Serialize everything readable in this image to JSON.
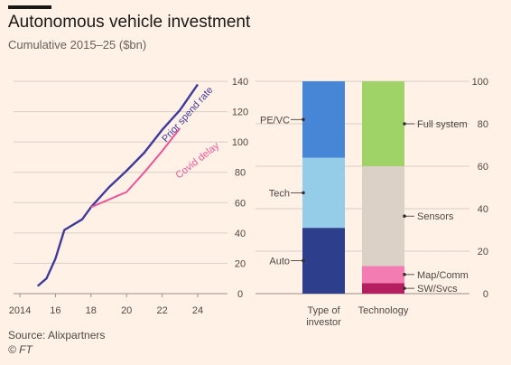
{
  "header": {
    "title": "Autonomous vehicle investment",
    "subtitle": "Cumulative 2015–25 ($bn)"
  },
  "footer": {
    "source": "Source: Alixpartners",
    "credit": "© FT"
  },
  "colors": {
    "background": "#fff1e5",
    "prior": "#3f3a9b",
    "covid": "#e7559c",
    "grid": "#d8cfc7"
  },
  "chart_data": [
    {
      "type": "line",
      "x_ticks": [
        "2014",
        "16",
        "18",
        "20",
        "22",
        "24"
      ],
      "x_tick_values": [
        2014,
        2016,
        2018,
        2020,
        2022,
        2024
      ],
      "xlim": [
        2014,
        2025
      ],
      "y_ticks": [
        "0",
        "20",
        "40",
        "60",
        "80",
        "100",
        "120",
        "140"
      ],
      "ylim": [
        0,
        140
      ],
      "grid": true,
      "series": [
        {
          "name": "Prior spend rate",
          "color": "#3f3a9b",
          "points": [
            [
              2015,
              5
            ],
            [
              2015.5,
              10
            ],
            [
              2016,
              23
            ],
            [
              2016.5,
              42
            ],
            [
              2017.5,
              49
            ],
            [
              2018,
              57
            ],
            [
              2019,
              70
            ],
            [
              2020,
              81
            ],
            [
              2021,
              93
            ],
            [
              2022,
              108
            ],
            [
              2023,
              121
            ],
            [
              2024,
              138
            ]
          ]
        },
        {
          "name": "Covid delay",
          "color": "#e7559c",
          "points": [
            [
              2018,
              57
            ],
            [
              2019,
              62
            ],
            [
              2020,
              67
            ],
            [
              2021,
              80
            ],
            [
              2022,
              94
            ],
            [
              2023,
              109
            ]
          ]
        }
      ]
    },
    {
      "type": "bar",
      "stacked": true,
      "y_ticks": [
        "0",
        "20",
        "40",
        "60",
        "80",
        "100"
      ],
      "ylim": [
        0,
        100
      ],
      "categories": [
        "Type of\ninvestor",
        "Technology"
      ],
      "bars": [
        {
          "category": "Type of\ninvestor",
          "segments": [
            {
              "name": "Auto",
              "value": 31,
              "color": "#2c3e8c"
            },
            {
              "name": "Tech",
              "value": 33,
              "color": "#95cde9"
            },
            {
              "name": "PE/VC",
              "value": 36,
              "color": "#4785d6"
            }
          ]
        },
        {
          "category": "Technology",
          "segments": [
            {
              "name": "SW/Svcs",
              "value": 5,
              "color": "#b51f61"
            },
            {
              "name": "Map/Comm",
              "value": 8,
              "color": "#f37cb3"
            },
            {
              "name": "Sensors",
              "value": 47,
              "color": "#dbd1c6"
            },
            {
              "name": "Full system",
              "value": 40,
              "color": "#9fd267"
            }
          ]
        }
      ]
    }
  ]
}
